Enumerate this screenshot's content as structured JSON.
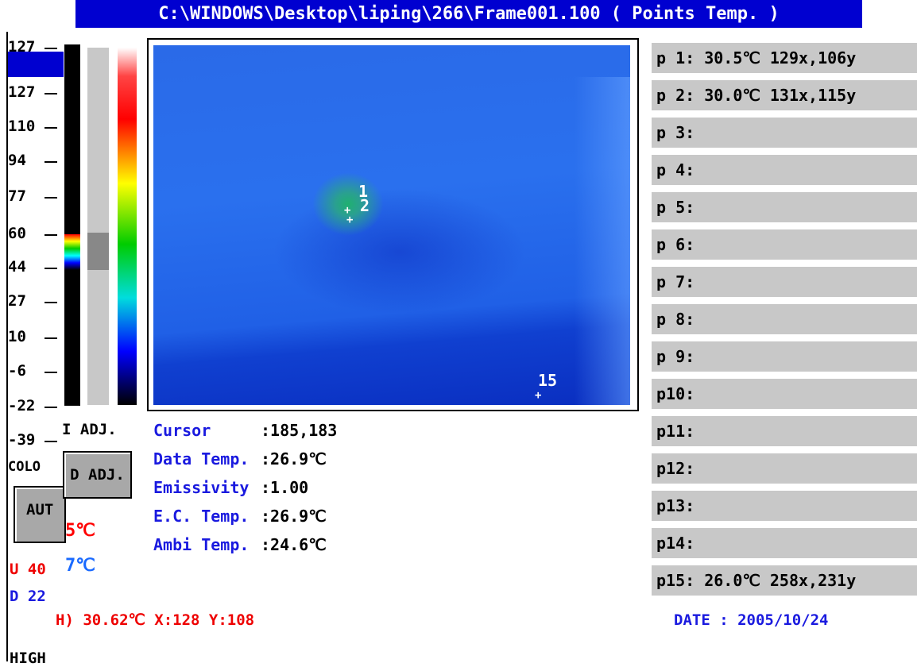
{
  "title": "C:\\WINDOWS\\Desktop\\liping\\266\\Frame001.100 ( Points Temp. )",
  "scale_labels": [
    "127",
    "127",
    "110",
    "94",
    "77",
    "60",
    "44",
    "27",
    "10",
    "-6",
    "-22",
    "-39"
  ],
  "left_panel": {
    "adj_label": "I ADJ.",
    "color_label": "COLO",
    "adj_button": "D ADJ.",
    "auto_button": "AUT",
    "high_temp": "5℃",
    "low_temp": "7℃",
    "upper": "U 40",
    "lower": "D 22",
    "high_label": "HIGH"
  },
  "image_markers": [
    "1",
    "2",
    "15"
  ],
  "info": [
    {
      "label": "Cursor",
      "value": ":185,183"
    },
    {
      "label": "Data Temp.",
      "value": ":26.9℃"
    },
    {
      "label": "Emissivity",
      "value": ":1.00"
    },
    {
      "label": "E.C. Temp.",
      "value": ":26.9℃"
    },
    {
      "label": "Ambi Temp.",
      "value": ":24.6℃"
    }
  ],
  "points": [
    "p 1: 30.5℃ 129x,106y",
    "p 2: 30.0℃ 131x,115y",
    "p 3:",
    "p 4:",
    "p 5:",
    "p 6:",
    "p 7:",
    "p 8:",
    "p 9:",
    "p10:",
    "p11:",
    "p12:",
    "p13:",
    "p14:",
    "p15: 26.0℃ 258x,231y"
  ],
  "status": {
    "max_point": "H) 30.62℃ X:128 Y:108",
    "date": "DATE : 2005/10/24"
  }
}
